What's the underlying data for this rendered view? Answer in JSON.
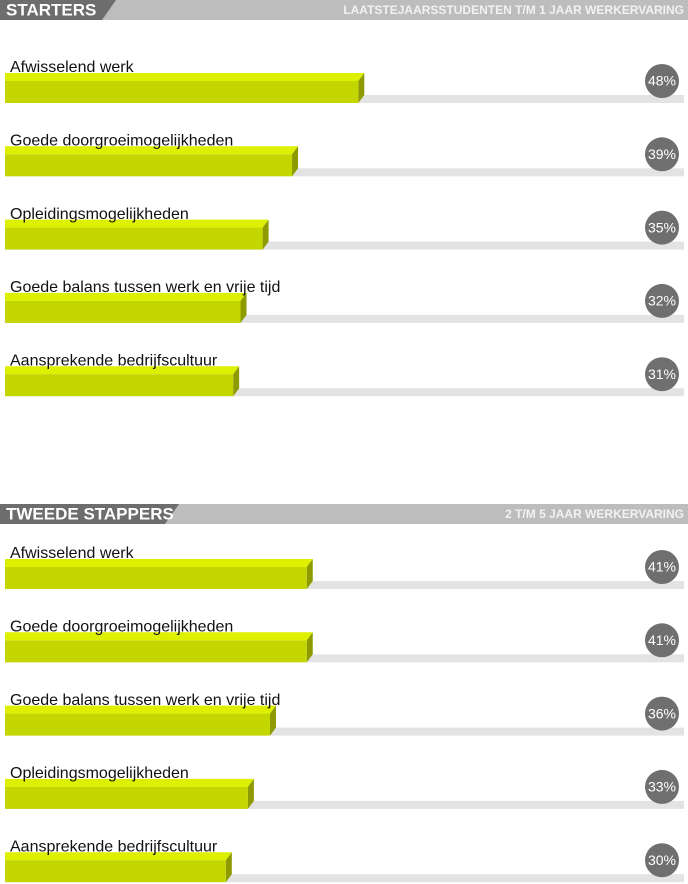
{
  "chart_data": [
    {
      "type": "bar",
      "title": "STARTERS",
      "subtitle": "LAATSTEJAARSSTUDENTEN T/M 1 JAAR WERKERVARING",
      "categories": [
        "Afwisselend werk",
        "Goede doorgroeimogelijkheden",
        "Opleidingsmogelijkheden",
        "Goede balans tussen werk en vrije tijd",
        "Aansprekende bedrijfscultuur"
      ],
      "values": [
        48,
        39,
        35,
        32,
        31
      ],
      "value_labels": [
        "48%",
        "39%",
        "35%",
        "32%",
        "31%"
      ],
      "color": "#c4d600"
    },
    {
      "type": "bar",
      "title": "TWEEDE STAPPERS",
      "subtitle": "2 T/M 5 JAAR WERKERVARING",
      "categories": [
        "Afwisselend werk",
        "Goede doorgroeimogelijkheden",
        "Goede balans tussen werk en vrije tijd",
        "Opleidingsmogelijkheden",
        "Aansprekende bedrijfscultuur"
      ],
      "values": [
        41,
        41,
        36,
        33,
        30
      ],
      "value_labels": [
        "41%",
        "41%",
        "36%",
        "33%",
        "30%"
      ],
      "color": "#c4d600"
    }
  ]
}
